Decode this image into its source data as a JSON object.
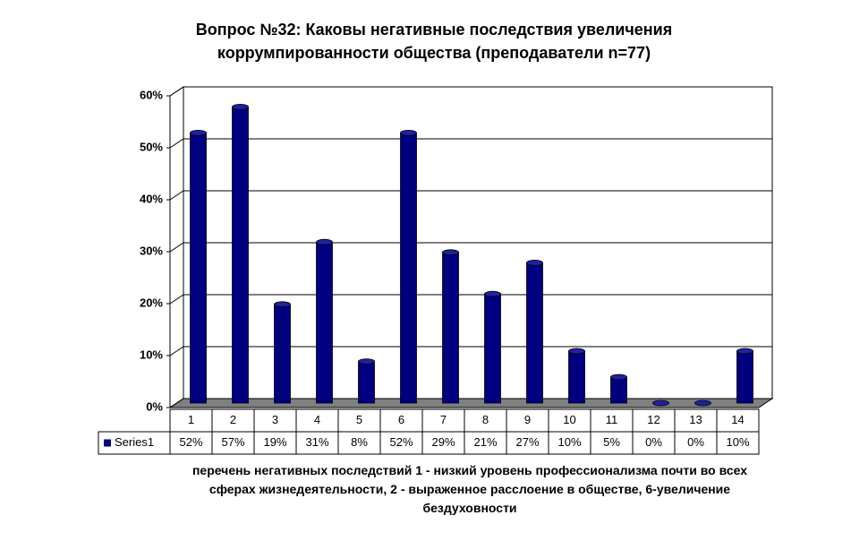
{
  "chart_data": {
    "type": "bar",
    "title": "Вопрос №32: Каковы негативные последствия увеличения коррумпированности общества (преподаватели n=77)",
    "x_label": "перечень негативных последствий 1 - низкий уровень профессионализма почти во всех сферах жизнедеятельности, 2 - выраженное расслоение в обществе, 6-увеличение бездуховности",
    "categories": [
      "1",
      "2",
      "3",
      "4",
      "5",
      "6",
      "7",
      "8",
      "9",
      "10",
      "11",
      "12",
      "13",
      "14"
    ],
    "series": [
      {
        "name": "Series1",
        "color": "#000080",
        "values": [
          52,
          57,
          19,
          31,
          8,
          52,
          29,
          21,
          27,
          10,
          5,
          0,
          0,
          10
        ],
        "value_labels": [
          "52%",
          "57%",
          "19%",
          "31%",
          "8%",
          "52%",
          "29%",
          "21%",
          "27%",
          "10%",
          "5%",
          "0%",
          "0%",
          "10%"
        ]
      }
    ],
    "ylim": [
      0,
      60
    ],
    "yticks": [
      {
        "value": 0,
        "label": "0%"
      },
      {
        "value": 10,
        "label": "10%"
      },
      {
        "value": 20,
        "label": "20%"
      },
      {
        "value": 30,
        "label": "30%"
      },
      {
        "value": 40,
        "label": "40%"
      },
      {
        "value": 50,
        "label": "50%"
      },
      {
        "value": 60,
        "label": "60%"
      }
    ],
    "grid": true
  }
}
